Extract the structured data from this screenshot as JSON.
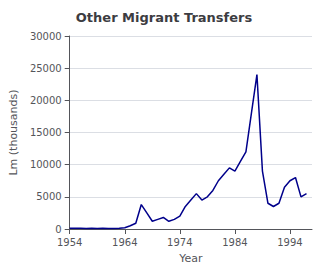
{
  "chart_data": {
    "type": "line",
    "title": "Other Migrant Transfers",
    "xlabel": "Year",
    "ylabel": "Lm (thousands)",
    "color": "#00008b",
    "x": [
      1954,
      1955,
      1956,
      1957,
      1958,
      1959,
      1960,
      1961,
      1962,
      1963,
      1964,
      1965,
      1966,
      1967,
      1968,
      1969,
      1970,
      1971,
      1972,
      1973,
      1974,
      1975,
      1976,
      1977,
      1978,
      1979,
      1980,
      1981,
      1982,
      1983,
      1984,
      1985,
      1986,
      1987,
      1988,
      1989,
      1990,
      1991,
      1992,
      1993,
      1994,
      1995,
      1996,
      1997
    ],
    "values": [
      100,
      120,
      100,
      80,
      100,
      90,
      100,
      80,
      90,
      100,
      200,
      500,
      900,
      3800,
      2500,
      1200,
      1500,
      1800,
      1200,
      1500,
      2000,
      3500,
      4500,
      5500,
      4500,
      5000,
      6000,
      7500,
      8500,
      9500,
      9000,
      10500,
      12000,
      18000,
      24000,
      9000,
      4000,
      3500,
      4000,
      6500,
      7500,
      8000,
      5000,
      5500
    ],
    "xlim": [
      1954,
      1998
    ],
    "xticks": [
      1954,
      1964,
      1974,
      1984,
      1994
    ],
    "ylim": [
      0,
      30000
    ],
    "yticks": [
      0,
      5000,
      10000,
      15000,
      20000,
      25000,
      30000
    ],
    "grid": true
  }
}
